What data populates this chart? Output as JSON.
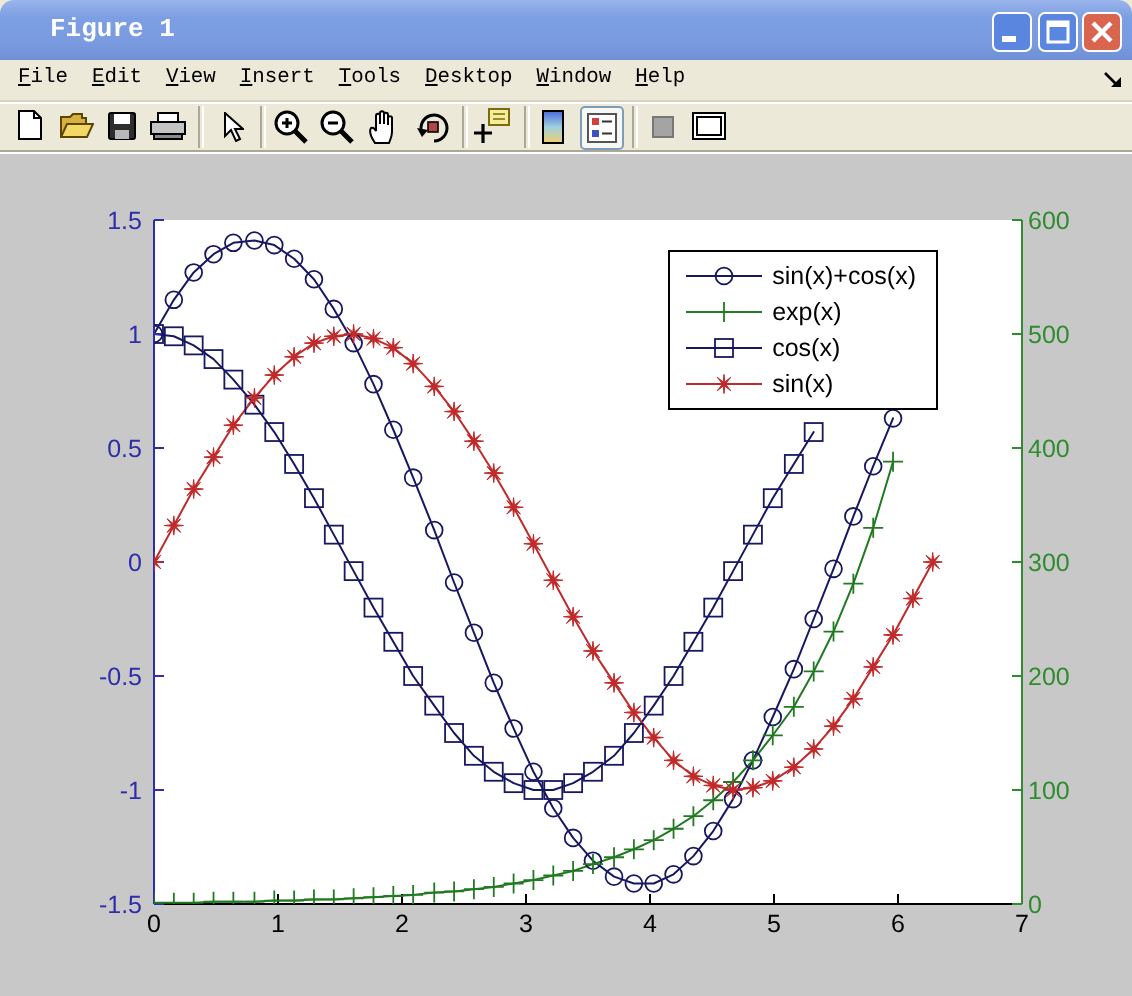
{
  "chart_data": {
    "type": "line",
    "annotations": [
      "Figure 1",
      "File",
      "Edit",
      "View",
      "Insert",
      "Tools",
      "Desktop",
      "Window",
      "Help"
    ],
    "x": [
      0,
      0.16,
      0.32,
      0.48,
      0.64,
      0.81,
      0.97,
      1.13,
      1.29,
      1.45,
      1.61,
      1.77,
      1.93,
      2.09,
      2.26,
      2.42,
      2.58,
      2.74,
      2.9,
      3.06,
      3.22,
      3.38,
      3.54,
      3.71,
      3.87,
      4.03,
      4.19,
      4.35,
      4.51,
      4.67,
      4.83,
      4.99,
      5.16,
      5.32,
      5.48,
      5.64,
      5.8,
      5.96,
      6.12,
      6.28
    ],
    "series": [
      {
        "name": "sin(x)+cos(x)",
        "color": "#181862",
        "marker": "circle",
        "values": [
          1,
          1.15,
          1.27,
          1.35,
          1.4,
          1.41,
          1.39,
          1.33,
          1.24,
          1.11,
          0.96,
          0.78,
          0.58,
          0.37,
          0.14,
          -0.09,
          -0.31,
          -0.53,
          -0.73,
          -0.92,
          -1.08,
          -1.21,
          -1.31,
          -1.38,
          -1.41,
          -1.41,
          -1.37,
          -1.29,
          -1.18,
          -1.04,
          -0.87,
          -0.68,
          -0.47,
          -0.25,
          -0.03,
          0.2,
          0.42,
          0.63,
          null,
          null
        ]
      },
      {
        "name": "exp(x)",
        "color": "#217a21",
        "marker": "cross",
        "axis": "y2",
        "values": [
          1,
          1,
          1,
          2,
          2,
          2,
          3,
          3,
          4,
          4,
          5,
          6,
          7,
          8,
          10,
          11,
          13,
          15,
          18,
          21,
          25,
          29,
          35,
          41,
          48,
          56,
          66,
          77,
          91,
          107,
          126,
          148,
          173,
          204,
          239,
          281,
          330,
          388,
          null,
          null
        ]
      },
      {
        "name": "cos(x)",
        "color": "#181862",
        "marker": "square",
        "values": [
          1,
          0.99,
          0.95,
          0.89,
          0.8,
          0.69,
          0.57,
          0.43,
          0.28,
          0.12,
          -0.04,
          -0.2,
          -0.35,
          -0.5,
          -0.63,
          -0.75,
          -0.85,
          -0.92,
          -0.97,
          -1,
          -1,
          -0.97,
          -0.92,
          -0.85,
          -0.75,
          -0.63,
          -0.5,
          -0.35,
          -0.2,
          -0.04,
          0.12,
          0.28,
          0.43,
          0.57,
          null,
          null,
          null,
          null,
          null,
          null
        ]
      },
      {
        "name": "sin(x)",
        "color": "#c02a2a",
        "marker": "star",
        "values": [
          0,
          0.16,
          0.32,
          0.46,
          0.6,
          0.72,
          0.82,
          0.9,
          0.96,
          0.99,
          1,
          0.98,
          0.94,
          0.87,
          0.77,
          0.66,
          0.53,
          0.39,
          0.24,
          0.08,
          -0.08,
          -0.24,
          -0.39,
          -0.53,
          -0.66,
          -0.77,
          -0.87,
          -0.94,
          -0.98,
          -1,
          -0.99,
          -0.96,
          -0.9,
          -0.82,
          -0.72,
          -0.6,
          -0.46,
          -0.32,
          -0.16,
          0
        ]
      }
    ],
    "xlim": [
      0,
      7
    ],
    "xticks": [
      0,
      1,
      2,
      3,
      4,
      5,
      6,
      7
    ],
    "ylim": [
      -1.5,
      1.5
    ],
    "yticks": [
      -1.5,
      -1,
      -0.5,
      0,
      0.5,
      1,
      1.5
    ],
    "y2lim": [
      0,
      600
    ],
    "y2ticks": [
      0,
      100,
      200,
      300,
      400,
      500,
      600
    ],
    "grid": false,
    "legend": "top right"
  }
}
